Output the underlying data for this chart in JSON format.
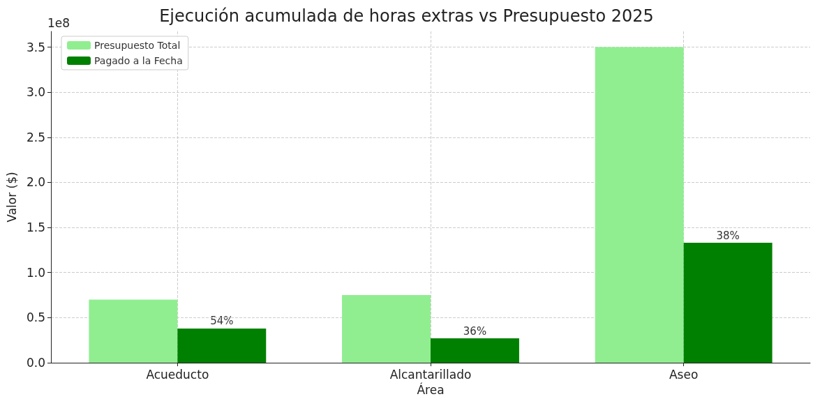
{
  "chart_data": {
    "type": "bar",
    "title": "Ejecución acumulada de horas extras vs Presupuesto 2025",
    "xlabel": "Área",
    "ylabel": "Valor ($)",
    "annotations": [
      "1e8",
      "54%",
      "36%",
      "38%"
    ],
    "categories": [
      "Acueducto",
      "Alcantarillado",
      "Aseo"
    ],
    "series": [
      {
        "name": "Presupuesto Total",
        "color": "#90ee90",
        "values": [
          0.7,
          0.75,
          3.5
        ]
      },
      {
        "name": "Pagado a la Fecha",
        "color": "#008000",
        "values": [
          0.38,
          0.27,
          1.33
        ]
      }
    ],
    "ylim": [
      0,
      3.675
    ],
    "yticks": [
      {
        "value": 0,
        "label": "0.0"
      },
      {
        "value": 0.5,
        "label": "0.5"
      },
      {
        "value": 1,
        "label": "1.0"
      },
      {
        "value": 1.5,
        "label": "1.5"
      },
      {
        "value": 2,
        "label": "2.0"
      },
      {
        "value": 2.5,
        "label": "2.5"
      },
      {
        "value": 3,
        "label": "3.0"
      },
      {
        "value": 3.5,
        "label": "3.5"
      }
    ],
    "grid": true,
    "legend": "top left"
  }
}
